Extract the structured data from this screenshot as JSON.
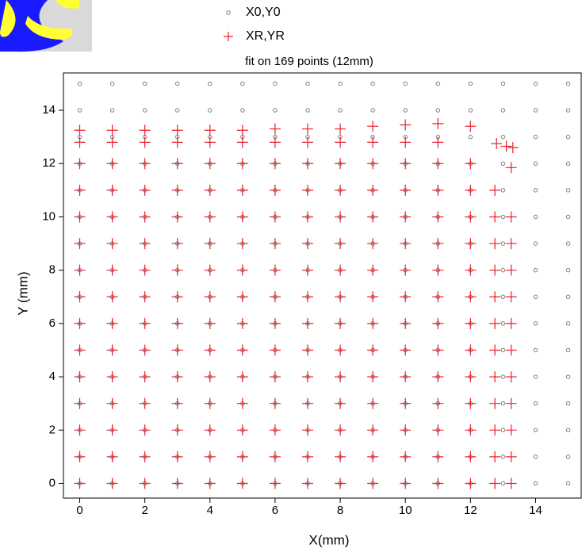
{
  "chart_data": {
    "type": "scatter",
    "title": "fit on 169 points (12mm)",
    "x_label": "X(mm)",
    "y_label": "Y (mm)",
    "xlim": [
      -0.5,
      15.4
    ],
    "ylim": [
      -0.55,
      15.4
    ],
    "xticks": [
      0,
      2,
      4,
      6,
      8,
      10,
      12,
      14
    ],
    "yticks": [
      0,
      2,
      4,
      6,
      8,
      10,
      12,
      14
    ],
    "series": [
      {
        "name": "X0,Y0",
        "color": "#808080",
        "marker": "circle",
        "x": [
          0,
          1,
          2,
          3,
          4,
          5,
          6,
          7,
          8,
          9,
          10,
          11,
          12,
          13,
          14,
          15,
          0,
          1,
          2,
          3,
          4,
          5,
          6,
          7,
          8,
          9,
          10,
          11,
          12,
          13,
          14,
          15,
          0,
          1,
          2,
          3,
          4,
          5,
          6,
          7,
          8,
          9,
          10,
          11,
          12,
          13,
          14,
          15,
          0,
          1,
          2,
          3,
          4,
          5,
          6,
          7,
          8,
          9,
          10,
          11,
          12,
          13,
          14,
          15,
          0,
          1,
          2,
          3,
          4,
          5,
          6,
          7,
          8,
          9,
          10,
          11,
          12,
          13,
          14,
          15,
          0,
          1,
          2,
          3,
          4,
          5,
          6,
          7,
          8,
          9,
          10,
          11,
          12,
          13,
          14,
          15,
          0,
          1,
          2,
          3,
          4,
          5,
          6,
          7,
          8,
          9,
          10,
          11,
          12,
          13,
          14,
          15,
          0,
          1,
          2,
          3,
          4,
          5,
          6,
          7,
          8,
          9,
          10,
          11,
          12,
          13,
          14,
          15,
          0,
          1,
          2,
          3,
          4,
          5,
          6,
          7,
          8,
          9,
          10,
          11,
          12,
          13,
          14,
          15,
          0,
          1,
          2,
          3,
          4,
          5,
          6,
          7,
          8,
          9,
          10,
          11,
          12,
          13,
          14,
          15,
          0,
          1,
          2,
          3,
          4,
          5,
          6,
          7,
          8,
          9,
          10,
          11,
          12,
          13,
          14,
          15,
          0,
          1,
          2,
          3,
          4,
          5,
          6,
          7,
          8,
          9,
          10,
          11,
          12,
          13,
          14,
          15,
          0,
          1,
          2,
          3,
          4,
          5,
          6,
          7,
          8,
          9,
          10,
          11,
          12,
          13,
          14,
          15,
          0,
          1,
          2,
          3,
          4,
          5,
          6,
          7,
          8,
          9,
          10,
          11,
          12,
          13,
          14,
          15,
          0,
          1,
          2,
          3,
          4,
          5,
          6,
          7,
          8,
          9,
          10,
          11,
          12,
          13,
          14,
          15,
          0,
          1,
          2,
          3,
          4,
          5,
          6,
          7,
          8,
          9,
          10,
          11,
          12,
          13,
          14,
          15
        ],
        "y": [
          0,
          0,
          0,
          0,
          0,
          0,
          0,
          0,
          0,
          0,
          0,
          0,
          0,
          0,
          0,
          0,
          1,
          1,
          1,
          1,
          1,
          1,
          1,
          1,
          1,
          1,
          1,
          1,
          1,
          1,
          1,
          1,
          2,
          2,
          2,
          2,
          2,
          2,
          2,
          2,
          2,
          2,
          2,
          2,
          2,
          2,
          2,
          2,
          3,
          3,
          3,
          3,
          3,
          3,
          3,
          3,
          3,
          3,
          3,
          3,
          3,
          3,
          3,
          3,
          4,
          4,
          4,
          4,
          4,
          4,
          4,
          4,
          4,
          4,
          4,
          4,
          4,
          4,
          4,
          4,
          5,
          5,
          5,
          5,
          5,
          5,
          5,
          5,
          5,
          5,
          5,
          5,
          5,
          5,
          5,
          5,
          6,
          6,
          6,
          6,
          6,
          6,
          6,
          6,
          6,
          6,
          6,
          6,
          6,
          6,
          6,
          6,
          7,
          7,
          7,
          7,
          7,
          7,
          7,
          7,
          7,
          7,
          7,
          7,
          7,
          7,
          7,
          7,
          8,
          8,
          8,
          8,
          8,
          8,
          8,
          8,
          8,
          8,
          8,
          8,
          8,
          8,
          8,
          8,
          9,
          9,
          9,
          9,
          9,
          9,
          9,
          9,
          9,
          9,
          9,
          9,
          9,
          9,
          9,
          9,
          10,
          10,
          10,
          10,
          10,
          10,
          10,
          10,
          10,
          10,
          10,
          10,
          10,
          10,
          10,
          10,
          11,
          11,
          11,
          11,
          11,
          11,
          11,
          11,
          11,
          11,
          11,
          11,
          11,
          11,
          11,
          11,
          12,
          12,
          12,
          12,
          12,
          12,
          12,
          12,
          12,
          12,
          12,
          12,
          12,
          12,
          12,
          12,
          13,
          13,
          13,
          13,
          13,
          13,
          13,
          13,
          13,
          13,
          13,
          13,
          13,
          13,
          13,
          13,
          14,
          14,
          14,
          14,
          14,
          14,
          14,
          14,
          14,
          14,
          14,
          14,
          14,
          14,
          14,
          14,
          15,
          15,
          15,
          15,
          15,
          15,
          15,
          15,
          15,
          15,
          15,
          15,
          15,
          15,
          15,
          15
        ]
      },
      {
        "name": "XR,YR",
        "color": "#e8202a",
        "marker": "plus",
        "x": [
          0,
          1,
          2,
          3,
          4,
          5,
          6,
          7,
          8,
          9,
          10,
          11,
          12,
          0,
          1,
          2,
          3,
          4,
          5,
          6,
          7,
          8,
          9,
          10,
          11,
          12,
          0,
          1,
          2,
          3,
          4,
          5,
          6,
          7,
          8,
          9,
          10,
          11,
          12,
          0,
          1,
          2,
          3,
          4,
          5,
          6,
          7,
          8,
          9,
          10,
          11,
          12,
          0,
          1,
          2,
          3,
          4,
          5,
          6,
          7,
          8,
          9,
          10,
          11,
          12,
          0,
          1,
          2,
          3,
          4,
          5,
          6,
          7,
          8,
          9,
          10,
          11,
          12,
          0,
          1,
          2,
          3,
          4,
          5,
          6,
          7,
          8,
          9,
          10,
          11,
          12,
          0,
          1,
          2,
          3,
          4,
          5,
          6,
          7,
          8,
          9,
          10,
          11,
          12,
          0,
          1,
          2,
          3,
          4,
          5,
          6,
          7,
          8,
          9,
          10,
          11,
          12,
          0,
          1,
          2,
          3,
          4,
          5,
          6,
          7,
          8,
          9,
          10,
          11,
          12,
          0,
          1,
          2,
          3,
          4,
          5,
          6,
          7,
          8,
          9,
          10,
          11,
          12,
          0,
          1,
          2,
          3,
          4,
          5,
          6,
          7,
          8,
          9,
          10,
          11,
          12,
          0,
          1,
          2,
          3,
          4,
          5,
          6,
          7,
          8,
          9,
          10,
          11,
          12,
          12.75,
          12.75,
          12.75,
          12.75,
          12.75,
          12.75,
          12.75,
          12.75,
          12.75,
          12.75,
          12.75,
          12.75,
          13.25,
          13.25,
          13.25,
          13.25,
          13.25,
          13.25,
          13.25,
          13.25,
          13.25,
          13.25,
          13.25,
          13.25,
          0,
          1,
          2,
          3,
          4,
          5,
          6,
          7,
          8,
          9,
          10,
          11,
          12,
          0,
          1,
          2,
          3,
          4,
          5,
          6,
          7,
          8,
          9,
          10,
          11,
          12.8,
          13.1,
          13.3
        ],
        "y": [
          0,
          0,
          0,
          0,
          0,
          0,
          0,
          0,
          0,
          0,
          0,
          0,
          0,
          1,
          1,
          1,
          1,
          1,
          1,
          1,
          1,
          1,
          1,
          1,
          1,
          1,
          2,
          2,
          2,
          2,
          2,
          2,
          2,
          2,
          2,
          2,
          2,
          2,
          2,
          3,
          3,
          3,
          3,
          3,
          3,
          3,
          3,
          3,
          3,
          3,
          3,
          3,
          4,
          4,
          4,
          4,
          4,
          4,
          4,
          4,
          4,
          4,
          4,
          4,
          4,
          5,
          5,
          5,
          5,
          5,
          5,
          5,
          5,
          5,
          5,
          5,
          5,
          5,
          6,
          6,
          6,
          6,
          6,
          6,
          6,
          6,
          6,
          6,
          6,
          6,
          6,
          7,
          7,
          7,
          7,
          7,
          7,
          7,
          7,
          7,
          7,
          7,
          7,
          7,
          8,
          8,
          8,
          8,
          8,
          8,
          8,
          8,
          8,
          8,
          8,
          8,
          8,
          9,
          9,
          9,
          9,
          9,
          9,
          9,
          9,
          9,
          9,
          9,
          9,
          9,
          10,
          10,
          10,
          10,
          10,
          10,
          10,
          10,
          10,
          10,
          10,
          10,
          10,
          11,
          11,
          11,
          11,
          11,
          11,
          11,
          11,
          11,
          11,
          11,
          11,
          11,
          12,
          12,
          12,
          12,
          12,
          12,
          12,
          12,
          12,
          12,
          12,
          12,
          12,
          0,
          1,
          2,
          3,
          4,
          5,
          6,
          7,
          8,
          9,
          10,
          11,
          0,
          1,
          2,
          3,
          4,
          5,
          6,
          7,
          8,
          9,
          10,
          11.85,
          13.25,
          13.25,
          13.25,
          13.25,
          13.25,
          13.25,
          13.3,
          13.3,
          13.3,
          13.4,
          13.45,
          13.5,
          13.4,
          12.8,
          12.8,
          12.8,
          12.8,
          12.8,
          12.8,
          12.8,
          12.8,
          12.8,
          12.8,
          12.8,
          12.8,
          12.75,
          12.65,
          12.6
        ]
      }
    ]
  }
}
